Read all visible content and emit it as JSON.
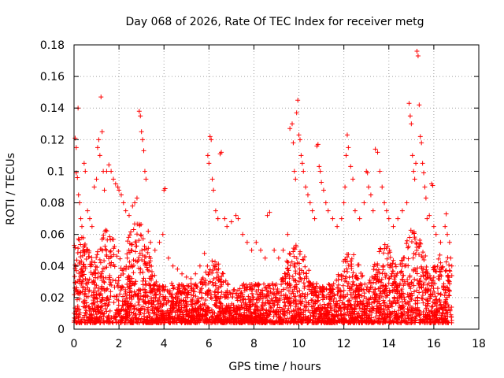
{
  "chart_data": {
    "type": "scatter",
    "title": "Day 068 of 2026, Rate Of TEC Index for receiver metg",
    "xlabel": "GPS time / hours",
    "ylabel": "ROTI / TECUs",
    "xlim": [
      0,
      18
    ],
    "ylim": [
      0,
      0.18
    ],
    "x_ticks": [
      0,
      2,
      4,
      6,
      8,
      10,
      12,
      14,
      16,
      18
    ],
    "x_tick_labels": [
      "0",
      "2",
      "4",
      "6",
      "8",
      "10",
      "12",
      "14",
      "16",
      "18"
    ],
    "y_ticks": [
      0,
      0.02,
      0.04,
      0.06,
      0.08,
      0.1,
      0.12,
      0.14,
      0.16,
      0.18
    ],
    "y_tick_labels": [
      "0",
      "0.02",
      "0.04",
      "0.06",
      "0.08",
      "0.1",
      "0.12",
      "0.14",
      "0.16",
      "0.18"
    ],
    "grid": true,
    "marker": "+",
    "color": "#ff0000",
    "series": [
      {
        "name": "ROTI",
        "points": [
          [
            0.05,
            0.121
          ],
          [
            0.1,
            0.115
          ],
          [
            0.18,
            0.14
          ],
          [
            0.1,
            0.099
          ],
          [
            0.15,
            0.096
          ],
          [
            0.2,
            0.085
          ],
          [
            0.25,
            0.08
          ],
          [
            0.3,
            0.07
          ],
          [
            0.35,
            0.065
          ],
          [
            0.45,
            0.105
          ],
          [
            0.5,
            0.1
          ],
          [
            0.6,
            0.075
          ],
          [
            0.7,
            0.07
          ],
          [
            0.8,
            0.065
          ],
          [
            0.9,
            0.09
          ],
          [
            1.0,
            0.095
          ],
          [
            1.05,
            0.115
          ],
          [
            1.1,
            0.12
          ],
          [
            1.15,
            0.11
          ],
          [
            1.2,
            0.147
          ],
          [
            1.25,
            0.125
          ],
          [
            1.3,
            0.1
          ],
          [
            1.35,
            0.088
          ],
          [
            1.45,
            0.1
          ],
          [
            1.55,
            0.104
          ],
          [
            1.65,
            0.1
          ],
          [
            1.75,
            0.095
          ],
          [
            1.85,
            0.092
          ],
          [
            1.95,
            0.09
          ],
          [
            2.0,
            0.088
          ],
          [
            2.1,
            0.085
          ],
          [
            2.2,
            0.08
          ],
          [
            2.3,
            0.075
          ],
          [
            2.45,
            0.072
          ],
          [
            2.6,
            0.078
          ],
          [
            2.7,
            0.08
          ],
          [
            2.8,
            0.083
          ],
          [
            2.9,
            0.138
          ],
          [
            2.95,
            0.135
          ],
          [
            3.0,
            0.125
          ],
          [
            3.05,
            0.12
          ],
          [
            3.1,
            0.113
          ],
          [
            3.15,
            0.1
          ],
          [
            3.2,
            0.095
          ],
          [
            3.3,
            0.062
          ],
          [
            3.4,
            0.055
          ],
          [
            3.6,
            0.05
          ],
          [
            3.8,
            0.055
          ],
          [
            3.95,
            0.06
          ],
          [
            4.0,
            0.088
          ],
          [
            4.05,
            0.089
          ],
          [
            4.2,
            0.045
          ],
          [
            4.4,
            0.04
          ],
          [
            4.6,
            0.038
          ],
          [
            4.8,
            0.035
          ],
          [
            5.0,
            0.033
          ],
          [
            5.2,
            0.032
          ],
          [
            5.4,
            0.035
          ],
          [
            5.6,
            0.04
          ],
          [
            5.8,
            0.048
          ],
          [
            5.95,
            0.11
          ],
          [
            6.0,
            0.105
          ],
          [
            6.05,
            0.122
          ],
          [
            6.1,
            0.12
          ],
          [
            6.15,
            0.095
          ],
          [
            6.2,
            0.088
          ],
          [
            6.3,
            0.075
          ],
          [
            6.4,
            0.07
          ],
          [
            6.5,
            0.111
          ],
          [
            6.55,
            0.112
          ],
          [
            6.7,
            0.07
          ],
          [
            6.8,
            0.065
          ],
          [
            7.0,
            0.068
          ],
          [
            7.2,
            0.072
          ],
          [
            7.3,
            0.07
          ],
          [
            7.5,
            0.06
          ],
          [
            7.7,
            0.055
          ],
          [
            7.9,
            0.05
          ],
          [
            8.1,
            0.055
          ],
          [
            8.3,
            0.05
          ],
          [
            8.5,
            0.045
          ],
          [
            8.6,
            0.072
          ],
          [
            8.7,
            0.074
          ],
          [
            8.9,
            0.05
          ],
          [
            9.1,
            0.045
          ],
          [
            9.3,
            0.05
          ],
          [
            9.5,
            0.06
          ],
          [
            9.6,
            0.127
          ],
          [
            9.7,
            0.13
          ],
          [
            9.75,
            0.118
          ],
          [
            9.8,
            0.1
          ],
          [
            9.85,
            0.095
          ],
          [
            9.9,
            0.137
          ],
          [
            9.95,
            0.145
          ],
          [
            10.0,
            0.123
          ],
          [
            10.05,
            0.12
          ],
          [
            10.1,
            0.11
          ],
          [
            10.15,
            0.105
          ],
          [
            10.2,
            0.1
          ],
          [
            10.3,
            0.09
          ],
          [
            10.4,
            0.085
          ],
          [
            10.5,
            0.08
          ],
          [
            10.6,
            0.075
          ],
          [
            10.7,
            0.07
          ],
          [
            10.8,
            0.116
          ],
          [
            10.85,
            0.117
          ],
          [
            10.9,
            0.103
          ],
          [
            10.95,
            0.1
          ],
          [
            11.0,
            0.093
          ],
          [
            11.1,
            0.088
          ],
          [
            11.2,
            0.08
          ],
          [
            11.3,
            0.075
          ],
          [
            11.5,
            0.07
          ],
          [
            11.7,
            0.065
          ],
          [
            11.9,
            0.07
          ],
          [
            12.0,
            0.08
          ],
          [
            12.05,
            0.09
          ],
          [
            12.1,
            0.11
          ],
          [
            12.15,
            0.123
          ],
          [
            12.2,
            0.115
          ],
          [
            12.3,
            0.103
          ],
          [
            12.4,
            0.095
          ],
          [
            12.5,
            0.075
          ],
          [
            12.7,
            0.07
          ],
          [
            12.9,
            0.08
          ],
          [
            13.0,
            0.1
          ],
          [
            13.05,
            0.099
          ],
          [
            13.1,
            0.09
          ],
          [
            13.2,
            0.085
          ],
          [
            13.3,
            0.075
          ],
          [
            13.4,
            0.114
          ],
          [
            13.5,
            0.112
          ],
          [
            13.6,
            0.1
          ],
          [
            13.7,
            0.09
          ],
          [
            13.8,
            0.08
          ],
          [
            13.9,
            0.075
          ],
          [
            14.0,
            0.07
          ],
          [
            14.2,
            0.065
          ],
          [
            14.4,
            0.07
          ],
          [
            14.6,
            0.075
          ],
          [
            14.8,
            0.08
          ],
          [
            14.9,
            0.143
          ],
          [
            14.95,
            0.135
          ],
          [
            15.0,
            0.13
          ],
          [
            15.05,
            0.11
          ],
          [
            15.1,
            0.1
          ],
          [
            15.15,
            0.095
          ],
          [
            15.2,
            0.105
          ],
          [
            15.25,
            0.176
          ],
          [
            15.3,
            0.173
          ],
          [
            15.35,
            0.142
          ],
          [
            15.4,
            0.122
          ],
          [
            15.45,
            0.118
          ],
          [
            15.5,
            0.105
          ],
          [
            15.55,
            0.099
          ],
          [
            15.6,
            0.09
          ],
          [
            15.65,
            0.083
          ],
          [
            15.7,
            0.07
          ],
          [
            15.8,
            0.072
          ],
          [
            15.9,
            0.092
          ],
          [
            15.95,
            0.091
          ],
          [
            16.0,
            0.065
          ],
          [
            16.1,
            0.06
          ],
          [
            16.3,
            0.055
          ],
          [
            16.5,
            0.065
          ],
          [
            16.55,
            0.073
          ],
          [
            16.6,
            0.06
          ],
          [
            16.7,
            0.055
          ],
          [
            16.75,
            0.045
          ],
          [
            16.8,
            0.04
          ]
        ]
      }
    ]
  }
}
